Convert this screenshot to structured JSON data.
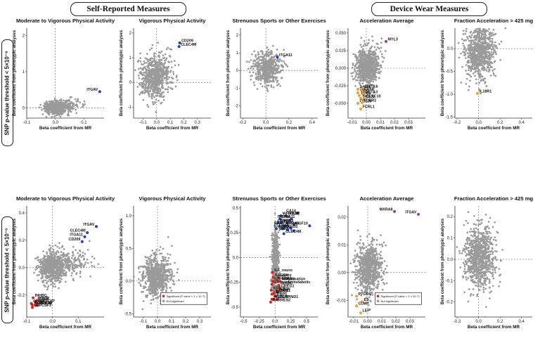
{
  "sections": {
    "self_reported": "Self-Reported Measures",
    "device_wear": "Device Wear Measures"
  },
  "row_labels": {
    "top": "SNP p-value threshold < 5×10⁻⁸",
    "bottom": "SNP p-value threshold < 5×10⁻⁶"
  },
  "shared": {
    "ylabel": "Beta coefficient from phenotypic analyses",
    "xlabel": "Beta coefficient from MR"
  },
  "legend": {
    "significant": "Significant (P value < 1 × 10⁻⁵)",
    "not_significant": "Not significant"
  },
  "colors": {
    "gray": "#9a9a9a",
    "blue": "#1f3fbf",
    "red": "#d8261c",
    "orange": "#f0a12a",
    "purple": "#8e3bb5"
  },
  "chart_data": [
    {
      "type": "scatter",
      "title": "Moderate to Vigorous Physical Activity",
      "xlabel": "Beta coefficient from MR",
      "ylabel": "Beta coefficient from phenotypic analyses",
      "xlim": [
        -0.1,
        0.17
      ],
      "ylim": [
        -0.28,
        2.2
      ],
      "xticks": [
        -0.1,
        0.0,
        0.1
      ],
      "xtick_labels": [
        "-0.1",
        "0.0",
        "0.1"
      ],
      "yticks": [
        0,
        1,
        2
      ],
      "ytick_labels": [
        "0",
        "1",
        "2"
      ],
      "cloud": {
        "cx": 0.0,
        "cy": 0.0,
        "sx": 0.02,
        "sy": 0.09,
        "n": 520,
        "tail_x": 0.07
      },
      "highlights": [
        {
          "label": "ITGAV",
          "x": 0.155,
          "y": 0.45,
          "color": "blue"
        }
      ],
      "labeled_gray": []
    },
    {
      "type": "scatter",
      "title": "Vigorous Physical Activity",
      "xlabel": "Beta coefficient from MR",
      "ylabel": "Beta coefficient from phenotypic analyses",
      "xlim": [
        -0.17,
        0.4
      ],
      "ylim": [
        -1.45,
        2.2
      ],
      "xticks": [
        -0.1,
        0.0,
        0.1,
        0.2,
        0.3
      ],
      "xtick_labels": [
        "-0.1",
        "0.0",
        "0.1",
        "0.2",
        "0.3"
      ],
      "yticks": [
        -1,
        0,
        1,
        2
      ],
      "ytick_labels": [
        "-1",
        "0",
        "1",
        "2"
      ],
      "cloud": {
        "cx": -0.02,
        "cy": 0.2,
        "sx": 0.05,
        "sy": 0.4,
        "n": 700,
        "tail_x": 0.1
      },
      "highlights": [
        {
          "label": "CD209",
          "x": 0.17,
          "y": 1.6,
          "color": "blue"
        },
        {
          "label": "CLEC4M",
          "x": 0.165,
          "y": 1.45,
          "color": "blue"
        }
      ],
      "labeled_gray": []
    },
    {
      "type": "scatter",
      "title": "Strenuous Sports or Other Exercises",
      "xlabel": "Beta coefficient from MR",
      "ylabel": "Beta coefficient from phenotypic analyses",
      "xlim": [
        -0.22,
        0.45
      ],
      "ylim": [
        -2.7,
        2.4
      ],
      "xticks": [
        -0.2,
        0.0,
        0.2,
        0.4
      ],
      "xtick_labels": [
        "-0.2",
        "0.0",
        "0.2",
        "0.4"
      ],
      "yticks": [
        -2,
        -1,
        0,
        1,
        2
      ],
      "ytick_labels": [
        "-2",
        "-1",
        "0",
        "1",
        "2"
      ],
      "cloud": {
        "cx": 0.0,
        "cy": 0.05,
        "sx": 0.055,
        "sy": 0.45,
        "n": 520,
        "tail_x": 0.08
      },
      "highlights": [
        {
          "label": "ITGA11",
          "x": 0.1,
          "y": 0.75,
          "color": "blue"
        }
      ],
      "labeled_gray": []
    },
    {
      "type": "scatter",
      "title": "Acceleration Average",
      "xlabel": "Beta coefficient from MR",
      "ylabel": "Beta coefficient from phenotypic analyses",
      "xlim": [
        -0.013,
        0.042
      ],
      "ylim": [
        -0.071,
        0.057
      ],
      "xticks": [
        -0.01,
        0.0,
        0.01,
        0.02,
        0.03
      ],
      "xtick_labels": [
        "-0.01",
        "0.00",
        "0.01",
        "0.02",
        "0.03"
      ],
      "yticks": [
        -0.05,
        -0.025,
        0.0,
        0.025,
        0.05
      ],
      "ytick_labels": [
        "-0.050",
        "-0.025",
        "0.000",
        "0.025",
        "0.050"
      ],
      "cloud": {
        "cx": 0.0,
        "cy": 0.0,
        "sx": 0.004,
        "sy": 0.013,
        "n": 700,
        "tail_x": 0.005
      },
      "highlights": [
        {
          "label": "MYL3",
          "x": 0.014,
          "y": 0.038,
          "color": "purple"
        },
        {
          "label": "AOH4",
          "x": -0.006,
          "y": -0.03,
          "color": "orange"
        },
        {
          "label": "GSTA1",
          "x": -0.002,
          "y": -0.029,
          "color": "orange"
        },
        {
          "label": "THY1",
          "x": -0.006,
          "y": -0.035,
          "color": "orange"
        },
        {
          "label": "CA5A",
          "x": -0.003,
          "y": -0.033,
          "color": "orange"
        },
        {
          "label": "UPB1",
          "x": -0.005,
          "y": -0.039,
          "color": "orange"
        },
        {
          "label": "GSTA3",
          "x": -0.002,
          "y": -0.037,
          "color": "orange"
        },
        {
          "label": "SIGLEC10",
          "x": -0.004,
          "y": -0.043,
          "color": "orange"
        },
        {
          "label": "CD72",
          "x": -0.002,
          "y": -0.044,
          "color": "orange"
        },
        {
          "label": "CCL20",
          "x": -0.006,
          "y": -0.05,
          "color": "orange"
        },
        {
          "label": "FCER2",
          "x": -0.003,
          "y": -0.049,
          "color": "orange"
        },
        {
          "label": "FCRL1",
          "x": -0.004,
          "y": -0.058,
          "color": "orange"
        }
      ],
      "labeled_gray": []
    },
    {
      "type": "scatter",
      "title": "Fraction Acceleration > 425 mg",
      "xlabel": "Beta coefficient from MR",
      "ylabel": "Beta coefficient from phenotypic analyses",
      "xlim": [
        -0.22,
        0.5
      ],
      "ylim": [
        -1.52,
        0.45
      ],
      "xticks": [
        -0.2,
        0.0,
        0.2,
        0.4
      ],
      "xtick_labels": [
        "-0.2",
        "0.0",
        "0.2",
        "0.4"
      ],
      "yticks": [
        -1.5,
        -1.0,
        -0.5,
        0.0
      ],
      "ytick_labels": [
        "-1.5",
        "-1.0",
        "-0.5",
        "0.0"
      ],
      "cloud": {
        "cx": 0.0,
        "cy": -0.1,
        "sx": 0.07,
        "sy": 0.28,
        "n": 750,
        "tail_x": 0.08
      },
      "highlights": [
        {
          "label": "IL18R1",
          "x": -0.01,
          "y": -0.98,
          "color": "orange"
        }
      ],
      "labeled_gray": []
    },
    {
      "type": "scatter",
      "title": "Moderate to Vigorous Physical Activity",
      "xlabel": "Beta coefficient from MR",
      "ylabel": "Beta coefficient from phenotypic analyses",
      "xlim": [
        -0.1,
        0.2
      ],
      "ylim": [
        -0.36,
        0.45
      ],
      "xticks": [
        -0.1,
        0.0,
        0.1
      ],
      "xtick_labels": [
        "-0.1",
        "0.0",
        "0.1"
      ],
      "yticks": [
        -0.2,
        0.0,
        0.2,
        0.4
      ],
      "ytick_labels": [
        "-0.2",
        "0.0",
        "0.2",
        "0.4"
      ],
      "cloud": {
        "cx": 0.0,
        "cy": 0.0,
        "sx": 0.025,
        "sy": 0.055,
        "n": 800,
        "tail_x": 0.12
      },
      "highlights": [
        {
          "label": "ITGAV",
          "x": 0.17,
          "y": 0.3,
          "color": "blue"
        },
        {
          "label": "CLEC4M",
          "x": 0.135,
          "y": 0.255,
          "color": "blue"
        },
        {
          "label": "ITGA11",
          "x": 0.125,
          "y": 0.225,
          "color": "blue"
        },
        {
          "label": "CD209",
          "x": 0.115,
          "y": 0.19,
          "color": "blue"
        },
        {
          "label": "INHBC",
          "x": -0.075,
          "y": -0.22,
          "color": "red"
        },
        {
          "label": "FURIN",
          "x": -0.065,
          "y": -0.245,
          "color": "red"
        },
        {
          "label": "PRCP",
          "x": -0.06,
          "y": -0.24,
          "color": "red"
        },
        {
          "label": "APBB1IP",
          "x": -0.062,
          "y": -0.26,
          "color": "red"
        },
        {
          "label": "CLMP",
          "x": -0.082,
          "y": -0.262,
          "color": "red"
        },
        {
          "label": "RARRES2",
          "x": -0.078,
          "y": -0.272,
          "color": "red"
        },
        {
          "label": "CXCL10",
          "x": -0.066,
          "y": -0.275,
          "color": "red"
        },
        {
          "label": "FETUB",
          "x": -0.058,
          "y": -0.275,
          "color": "red"
        },
        {
          "label": "LEPCSF3",
          "x": -0.078,
          "y": -0.29,
          "color": "red"
        }
      ],
      "labeled_gray": []
    },
    {
      "type": "scatter",
      "title": "Vigorous Physical Activity",
      "xlabel": "Beta coefficient from MR",
      "ylabel": "Beta coefficient from phenotypic analyses",
      "xlim": [
        -0.17,
        0.38
      ],
      "ylim": [
        -0.55,
        1.15
      ],
      "xticks": [
        -0.1,
        0.0,
        0.1,
        0.2,
        0.3
      ],
      "xtick_labels": [
        "-0.1",
        "0.0",
        "0.1",
        "0.2",
        "0.3"
      ],
      "yticks": [
        -0.5,
        0.0,
        0.5,
        1.0
      ],
      "ytick_labels": [
        "-0.5",
        "0.0",
        "0.5",
        "1.0"
      ],
      "cloud": {
        "cx": -0.02,
        "cy": 0.05,
        "sx": 0.045,
        "sy": 0.15,
        "n": 700,
        "tail_x": 0.08
      },
      "highlights": [],
      "labeled_gray": [],
      "legend": true
    },
    {
      "type": "scatter",
      "title": "Strenuous Sports or Other Exercises",
      "xlabel": "Beta coefficient from MR",
      "ylabel": "Beta coefficient from phenotypic analyses",
      "xlim": [
        -0.55,
        0.68
      ],
      "ylim": [
        -0.6,
        0.52
      ],
      "xticks": [
        -0.5,
        -0.25,
        0.0,
        0.25,
        0.5
      ],
      "xtick_labels": [
        "-0.5",
        "-0.25",
        "0.0",
        "0.25",
        "0.5"
      ],
      "yticks": [
        -0.5,
        -0.25,
        0.0,
        0.25,
        0.5
      ],
      "ytick_labels": [
        "-0.5",
        "-0.25",
        "0.0",
        "0.25",
        "0.5"
      ],
      "cloud": {
        "cx": 0.0,
        "cy": -0.08,
        "sx": 0.025,
        "sy": 0.13,
        "n": 600,
        "tail_x": 0.03
      },
      "highlights": [
        {
          "label": "CA14",
          "x": 0.36,
          "y": 0.45,
          "color": "blue"
        },
        {
          "label": "WFIKKN2",
          "x": 0.09,
          "y": 0.42,
          "color": "blue"
        },
        {
          "label": "ITGAV",
          "x": 0.18,
          "y": 0.42,
          "color": "blue"
        },
        {
          "label": "ITGA11",
          "x": 0.08,
          "y": 0.39,
          "color": "blue"
        },
        {
          "label": "ITGAM",
          "x": 0.26,
          "y": 0.39,
          "color": "blue"
        },
        {
          "label": "ITGB6",
          "x": 0.05,
          "y": 0.35,
          "color": "blue"
        },
        {
          "label": "PON3",
          "x": 0.1,
          "y": 0.35,
          "color": "blue"
        },
        {
          "label": "CA6",
          "x": 0.19,
          "y": 0.35,
          "color": "blue"
        },
        {
          "label": "MXRA8",
          "x": 0.14,
          "y": 0.32,
          "color": "blue"
        },
        {
          "label": "ADAMTS8",
          "x": 0.3,
          "y": 0.33,
          "color": "blue"
        },
        {
          "label": "MEGF10",
          "x": 0.55,
          "y": 0.32,
          "color": "blue"
        },
        {
          "label": "RGMA",
          "x": 0.02,
          "y": 0.29,
          "color": "blue"
        },
        {
          "label": "HPGDS",
          "x": 0.12,
          "y": 0.29,
          "color": "blue"
        },
        {
          "label": "CLEC4A",
          "x": 0.25,
          "y": 0.3,
          "color": "blue"
        },
        {
          "label": "ENPP5",
          "x": 0.3,
          "y": 0.27,
          "color": "blue"
        },
        {
          "label": "LPL",
          "x": 0.2,
          "y": 0.28,
          "color": "blue"
        },
        {
          "label": "CLEC4M",
          "x": 0.14,
          "y": 0.24,
          "color": "blue"
        },
        {
          "label": "IL6_neuro",
          "x": -0.04,
          "y": -0.15,
          "color": "red"
        },
        {
          "label": "GGH",
          "x": 0.05,
          "y": -0.2,
          "color": "red"
        },
        {
          "label": "IL6_onco",
          "x": -0.03,
          "y": -0.2,
          "color": "red"
        },
        {
          "label": "IL6_inflammation",
          "x": -0.04,
          "y": -0.24,
          "color": "red"
        },
        {
          "label": "GFRA1",
          "x": 0.03,
          "y": -0.23,
          "color": "red"
        },
        {
          "label": "ASGR1",
          "x": 0.08,
          "y": -0.24,
          "color": "red"
        },
        {
          "label": "IL6_cardiometabolic",
          "x": -0.05,
          "y": -0.27,
          "color": "red"
        },
        {
          "label": "INHBC",
          "x": 0.06,
          "y": -0.28,
          "color": "red"
        },
        {
          "label": "CREG1",
          "x": 0.07,
          "y": -0.31,
          "color": "red"
        },
        {
          "label": "KRT18",
          "x": -0.06,
          "y": -0.33,
          "color": "red"
        },
        {
          "label": "IL1RN",
          "x": 0.04,
          "y": -0.34,
          "color": "red"
        },
        {
          "label": "LEP",
          "x": -0.05,
          "y": -0.37,
          "color": "red"
        },
        {
          "label": "IL18R1",
          "x": -0.02,
          "y": -0.36,
          "color": "red"
        },
        {
          "label": "RBP5",
          "x": 0.0,
          "y": -0.39,
          "color": "red"
        },
        {
          "label": "HGF",
          "x": -0.05,
          "y": -0.42,
          "color": "red"
        },
        {
          "label": "PLAUR",
          "x": -0.02,
          "y": -0.42,
          "color": "red"
        },
        {
          "label": "SERPIND1",
          "x": 0.04,
          "y": -0.42,
          "color": "red"
        },
        {
          "label": "RARRES2",
          "x": -0.07,
          "y": -0.45,
          "color": "red"
        }
      ],
      "labeled_gray": [
        {
          "label": "ICAM1",
          "x": 0.02,
          "y": -0.33
        }
      ]
    },
    {
      "type": "scatter",
      "title": "Acceleration Average",
      "xlabel": "Beta coefficient from MR",
      "ylabel": "Beta coefficient from phenotypic analyses",
      "xlim": [
        -0.014,
        0.041
      ],
      "ylim": [
        -0.016,
        0.024
      ],
      "xticks": [
        -0.01,
        0.0,
        0.01,
        0.02,
        0.03
      ],
      "xtick_labels": [
        "-0.01",
        "0.00",
        "0.01",
        "0.02",
        "0.03"
      ],
      "yticks": [
        -0.01,
        0.0,
        0.01,
        0.02
      ],
      "ytick_labels": [
        "-0.01",
        "0.00",
        "0.01",
        "0.02"
      ],
      "cloud": {
        "cx": 0.0,
        "cy": 0.001,
        "sx": 0.004,
        "sy": 0.004,
        "n": 750,
        "tail_x": 0.008
      },
      "highlights": [
        {
          "label": "MXRA8",
          "x": 0.019,
          "y": 0.022,
          "color": "purple"
        },
        {
          "label": "ITGAV",
          "x": 0.036,
          "y": 0.021,
          "color": "purple"
        },
        {
          "label": "PTGDS",
          "x": -0.008,
          "y": -0.0085,
          "color": "orange"
        },
        {
          "label": "ES",
          "x": -0.004,
          "y": -0.0105,
          "color": "orange"
        },
        {
          "label": "CLMP",
          "x": -0.008,
          "y": -0.012,
          "color": "orange"
        },
        {
          "label": "LEP",
          "x": -0.005,
          "y": -0.0145,
          "color": "orange"
        }
      ],
      "labeled_gray": [],
      "legend": true
    },
    {
      "type": "scatter",
      "title": "Fraction Acceleration > 425 mg",
      "xlabel": "Beta coefficient from MR",
      "ylabel": "Beta coefficient from phenotypic analyses",
      "xlim": [
        -0.22,
        0.5
      ],
      "ylim": [
        -0.27,
        0.25
      ],
      "xticks": [
        -0.2,
        0.0,
        0.2,
        0.4
      ],
      "xtick_labels": [
        "-0.2",
        "0.0",
        "0.2",
        "0.4"
      ],
      "yticks": [
        -0.2,
        -0.1,
        0.0,
        0.1,
        0.2
      ],
      "ytick_labels": [
        "-0.2",
        "-0.1",
        "0.0",
        "0.1",
        "0.2"
      ],
      "cloud": {
        "cx": 0.0,
        "cy": 0.0,
        "sx": 0.07,
        "sy": 0.07,
        "n": 800,
        "tail_x": 0.08
      },
      "highlights": [],
      "labeled_gray": []
    }
  ]
}
